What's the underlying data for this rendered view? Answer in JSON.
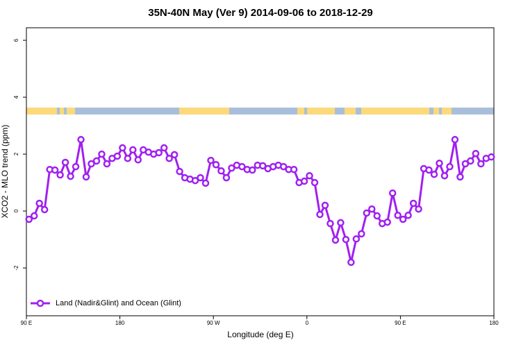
{
  "chart_data": {
    "type": "line",
    "title": "35N-40N May (Ver 9)   2014-09-06 to 2018-12-29",
    "x_label": "Longitude (deg E)",
    "y_label": "XCO2 - MLO trend (ppm)",
    "x": [
      92.5,
      97.5,
      102.5,
      107.5,
      112.5,
      117.5,
      122.5,
      127.5,
      132.5,
      137.5,
      142.5,
      147.5,
      152.5,
      157.5,
      162.5,
      167.5,
      172.5,
      177.5,
      182.5,
      187.5,
      192.5,
      197.5,
      202.5,
      207.5,
      212.5,
      217.5,
      222.5,
      227.5,
      232.5,
      237.5,
      242.5,
      247.5,
      252.5,
      257.5,
      262.5,
      267.5,
      272.5,
      277.5,
      282.5,
      287.5,
      292.5,
      297.5,
      302.5,
      307.5,
      312.5,
      317.5,
      322.5,
      327.5,
      332.5,
      337.5,
      342.5,
      347.5,
      352.5,
      357.5,
      362.5,
      367.5,
      372.5,
      377.5,
      382.5,
      387.5,
      392.5,
      397.5,
      402.5,
      407.5,
      412.5,
      417.5,
      422.5,
      427.5,
      432.5,
      437.5,
      442.5,
      447.5,
      452.5,
      457.5,
      462.5,
      467.5,
      472.5,
      477.5,
      482.5,
      487.5,
      492.5,
      497.5,
      502.5,
      507.5,
      512.5,
      517.5,
      522.5,
      527.5,
      532.5,
      537.5
    ],
    "series": [
      {
        "name": "Land (Nadir&Glint) and Ocean (Glint)",
        "color": "#a020f0",
        "values": [
          -0.29,
          -0.17,
          0.27,
          0.05,
          1.46,
          1.44,
          1.27,
          1.71,
          1.22,
          1.56,
          2.51,
          1.2,
          1.66,
          1.76,
          2.0,
          1.66,
          1.85,
          1.93,
          2.22,
          1.85,
          2.15,
          1.8,
          2.15,
          2.07,
          2.0,
          2.05,
          2.22,
          1.85,
          1.98,
          1.39,
          1.17,
          1.12,
          1.07,
          1.17,
          0.98,
          1.78,
          1.63,
          1.41,
          1.17,
          1.51,
          1.61,
          1.56,
          1.46,
          1.44,
          1.61,
          1.59,
          1.49,
          1.56,
          1.61,
          1.56,
          1.46,
          1.46,
          1.0,
          1.05,
          1.24,
          1.0,
          -0.12,
          0.2,
          -0.44,
          -1.02,
          -0.41,
          -1.0,
          -1.8,
          -0.98,
          -0.8,
          -0.07,
          0.07,
          -0.17,
          -0.44,
          -0.39,
          0.63,
          -0.15,
          -0.29,
          -0.15,
          0.27,
          0.07,
          1.49,
          1.44,
          1.29,
          1.68,
          1.24,
          1.56,
          2.51,
          1.2,
          1.66,
          1.76,
          2.02,
          1.66,
          1.85,
          1.9
        ]
      }
    ],
    "xlim": [
      90,
      540
    ],
    "xticks": [
      {
        "value": 90,
        "label": "90 E"
      },
      180,
      {
        "value": 270,
        "label": "90 W"
      },
      {
        "value": 360,
        "label": "0"
      },
      {
        "value": 450,
        "label": "90 E"
      },
      {
        "value": 540,
        "label": "180"
      }
    ],
    "ylim": [
      -3.68,
      6.44
    ],
    "yticks": [
      -2,
      0,
      2,
      4,
      6
    ],
    "legend": "bottom-left"
  }
}
